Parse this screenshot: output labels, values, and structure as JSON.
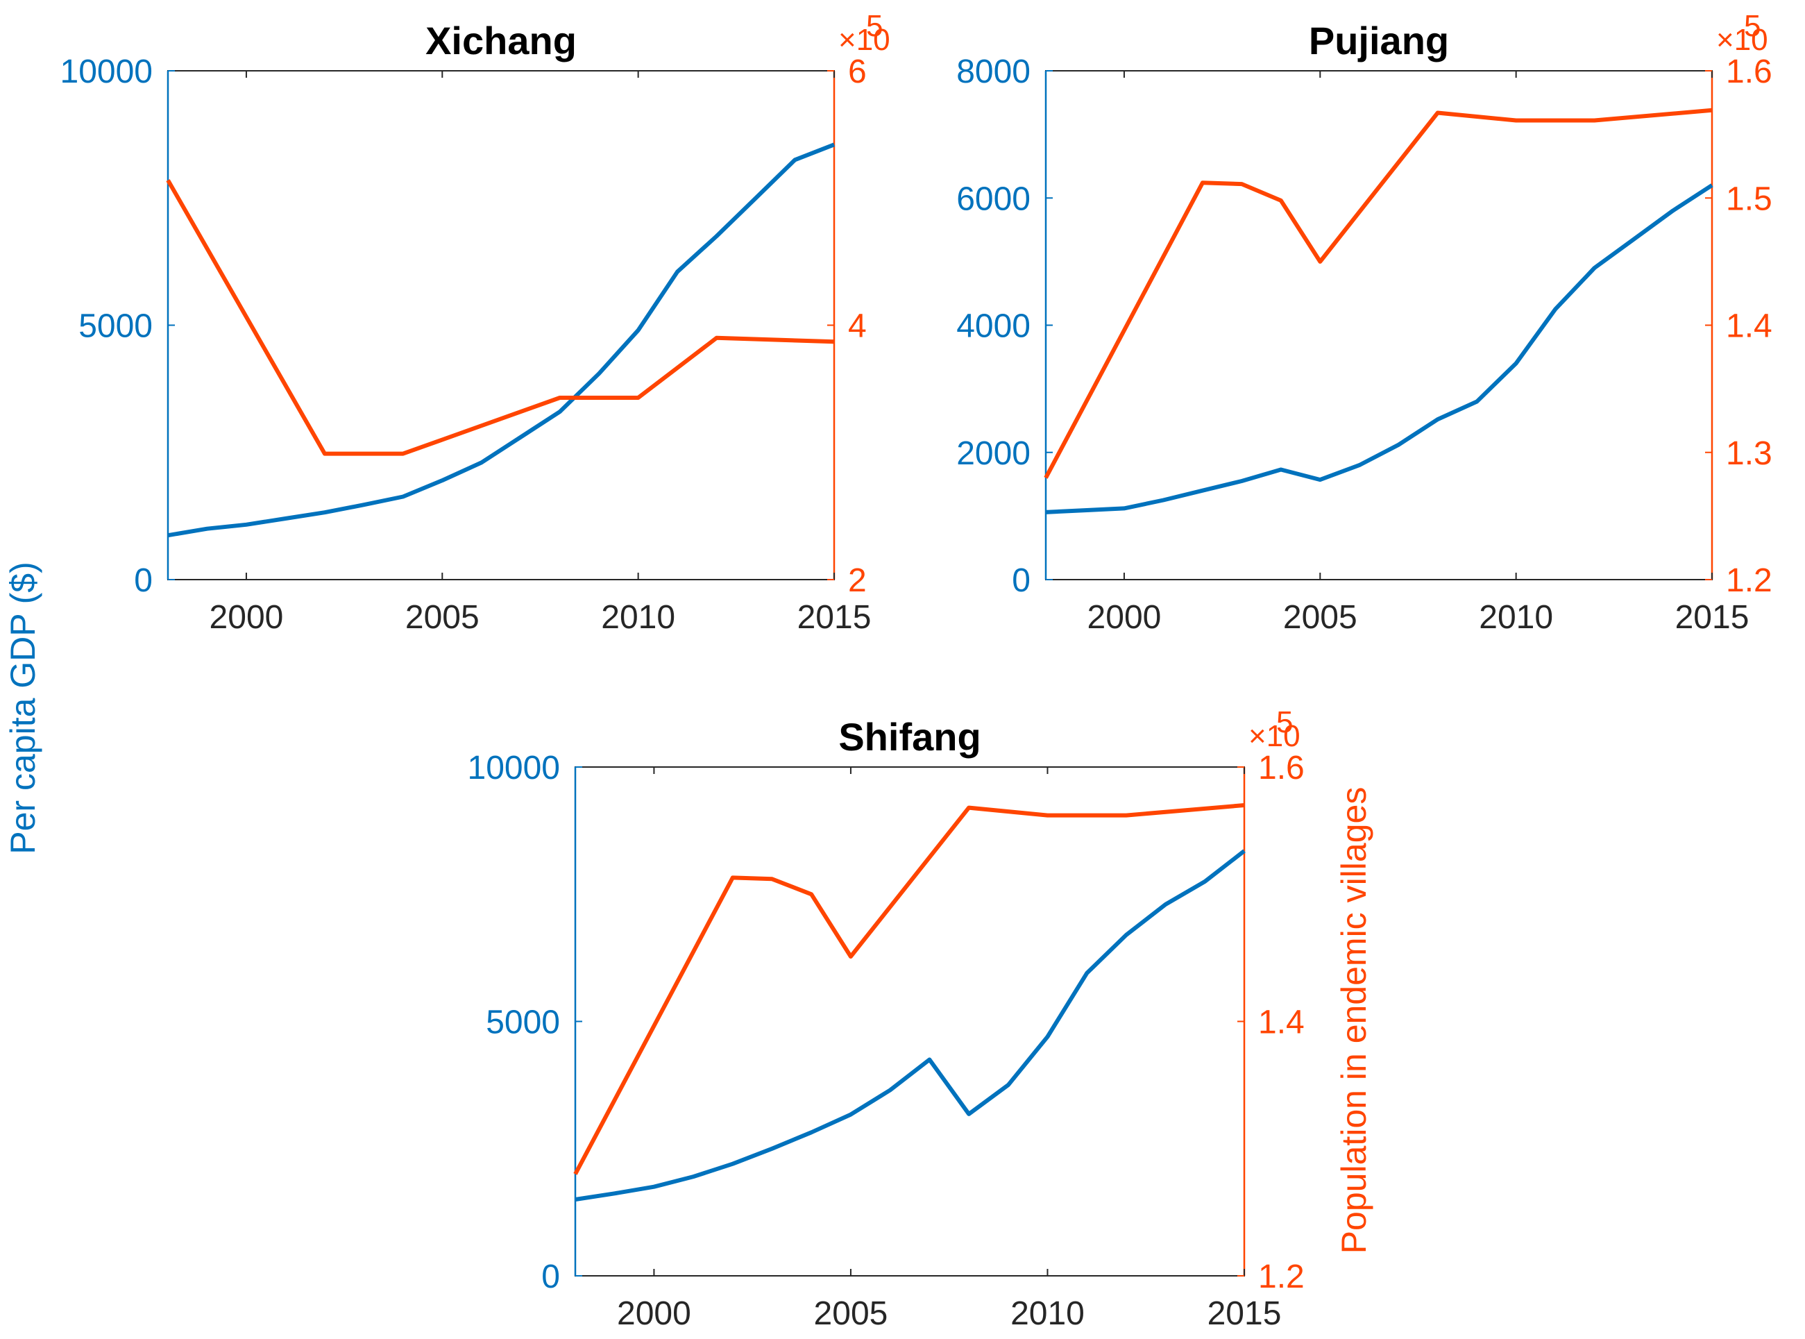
{
  "colors": {
    "gdp": "#0072BD",
    "population": "#FF4500",
    "axis_x": "#262626",
    "title": "#000000",
    "background": "#FFFFFF"
  },
  "labels": {
    "left_axis": "Per capita GDP ($)",
    "right_axis": "Population in endemic villages",
    "exponent_multiplier": "×10",
    "exponent_power": "5"
  },
  "chart_data": [
    {
      "type": "line",
      "title": "Xichang",
      "x": [
        1998,
        1999,
        2000,
        2001,
        2002,
        2003,
        2004,
        2005,
        2006,
        2007,
        2008,
        2009,
        2010,
        2011,
        2012,
        2013,
        2014,
        2015
      ],
      "xlim": [
        1998,
        2015
      ],
      "xticks": [
        2000,
        2005,
        2010,
        2015
      ],
      "ylabel": "Per capita GDP ($)",
      "y2label": "Population in endemic villages",
      "ylim": [
        0,
        10000
      ],
      "yticks": [
        0,
        5000,
        10000
      ],
      "y2lim": [
        2,
        6
      ],
      "y2ticks": [
        2,
        4,
        6
      ],
      "y2_scale": "×10^5",
      "series": [
        {
          "name": "Per capita GDP",
          "axis": "left",
          "color": "#0072BD",
          "values": [
            870,
            1000,
            1080,
            1200,
            1320,
            1470,
            1630,
            1950,
            2300,
            2800,
            3300,
            4050,
            4900,
            6050,
            6750,
            7500,
            8250,
            8550
          ]
        },
        {
          "name": "Population in endemic villages",
          "axis": "right",
          "color": "#FF4500",
          "x": [
            1998,
            2002,
            2004,
            2008,
            2010,
            2012,
            2015
          ],
          "values": [
            5.14,
            2.99,
            2.99,
            3.43,
            3.43,
            3.9,
            3.87
          ]
        }
      ]
    },
    {
      "type": "line",
      "title": "Pujiang",
      "x": [
        1998,
        1999,
        2000,
        2001,
        2002,
        2003,
        2004,
        2005,
        2006,
        2007,
        2008,
        2009,
        2010,
        2011,
        2012,
        2013,
        2014,
        2015
      ],
      "xlim": [
        1998,
        2015
      ],
      "xticks": [
        2000,
        2005,
        2010,
        2015
      ],
      "ylabel": "Per capita GDP ($)",
      "y2label": "Population in endemic villages",
      "ylim": [
        0,
        8000
      ],
      "yticks": [
        0,
        2000,
        4000,
        6000,
        8000
      ],
      "y2lim": [
        1.2,
        1.6
      ],
      "y2ticks": [
        1.2,
        1.3,
        1.4,
        1.5,
        1.6
      ],
      "y2_scale": "×10^5",
      "series": [
        {
          "name": "Per capita GDP",
          "axis": "left",
          "color": "#0072BD",
          "values": [
            1060,
            1090,
            1120,
            1250,
            1400,
            1550,
            1730,
            1570,
            1800,
            2120,
            2520,
            2800,
            3400,
            4250,
            4900,
            5350,
            5800,
            6200
          ]
        },
        {
          "name": "Population in endemic villages",
          "axis": "right",
          "color": "#FF4500",
          "x": [
            1998,
            2002,
            2003,
            2004,
            2005,
            2008,
            2010,
            2012,
            2015
          ],
          "values": [
            1.28,
            1.512,
            1.511,
            1.498,
            1.45,
            1.567,
            1.561,
            1.561,
            1.569
          ]
        }
      ]
    },
    {
      "type": "line",
      "title": "Shifang",
      "x": [
        1998,
        1999,
        2000,
        2001,
        2002,
        2003,
        2004,
        2005,
        2006,
        2007,
        2008,
        2009,
        2010,
        2011,
        2012,
        2013,
        2014,
        2015
      ],
      "xlim": [
        1998,
        2015
      ],
      "xticks": [
        2000,
        2005,
        2010,
        2015
      ],
      "ylabel": "Per capita GDP ($)",
      "y2label": "Population in endemic villages",
      "ylim": [
        0,
        10000
      ],
      "yticks": [
        0,
        5000,
        10000
      ],
      "y2lim": [
        1.2,
        1.6
      ],
      "y2ticks": [
        1.2,
        1.4,
        1.6
      ],
      "y2_scale": "×10^5",
      "series": [
        {
          "name": "Per capita GDP",
          "axis": "left",
          "color": "#0072BD",
          "values": [
            1500,
            1620,
            1750,
            1950,
            2200,
            2500,
            2820,
            3170,
            3650,
            4250,
            3180,
            3750,
            4700,
            5950,
            6700,
            7300,
            7750,
            8350
          ]
        },
        {
          "name": "Population in endemic villages",
          "axis": "right",
          "color": "#FF4500",
          "x": [
            1998,
            2002,
            2003,
            2004,
            2005,
            2008,
            2010,
            2012,
            2015
          ],
          "values": [
            1.28,
            1.513,
            1.512,
            1.5,
            1.451,
            1.568,
            1.562,
            1.562,
            1.57
          ]
        }
      ]
    }
  ]
}
